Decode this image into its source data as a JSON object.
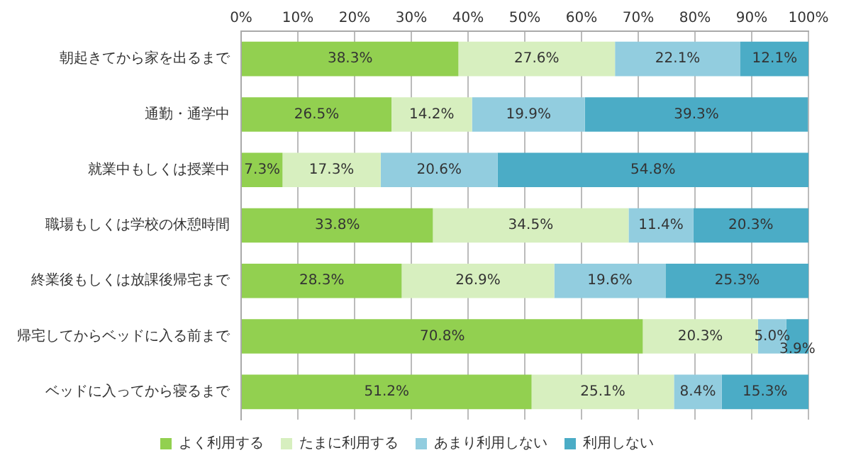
{
  "chart_data": {
    "type": "bar",
    "orientation": "horizontal",
    "stacked": true,
    "categories": [
      "朝起きてから家を出るまで",
      "通勤・通学中",
      "就業中もしくは授業中",
      "職場もしくは学校の休憩時間",
      "終業後もしくは放課後帰宅まで",
      "帰宅してからベッドに入る前まで",
      "ベッドに入ってから寝るまで"
    ],
    "series": [
      {
        "name": "よく利用する",
        "color": "#92d050",
        "values": [
          38.3,
          26.5,
          7.3,
          33.8,
          28.3,
          70.8,
          51.2
        ],
        "value_labels": [
          "38.3%",
          "26.5%",
          "7.3%",
          "33.8%",
          "28.3%",
          "70.8%",
          "51.2%"
        ]
      },
      {
        "name": "たまに利用する",
        "color": "#d7efbf",
        "values": [
          27.6,
          14.2,
          17.3,
          34.5,
          26.9,
          20.3,
          25.1
        ],
        "value_labels": [
          "27.6%",
          "14.2%",
          "17.3%",
          "34.5%",
          "26.9%",
          "20.3%",
          "25.1%"
        ]
      },
      {
        "name": "あまり利用しない",
        "color": "#92cddf",
        "values": [
          22.1,
          19.9,
          20.6,
          11.4,
          19.6,
          5.0,
          8.4
        ],
        "value_labels": [
          "22.1%",
          "19.9%",
          "20.6%",
          "11.4%",
          "19.6%",
          "5.0%",
          "8.4%"
        ]
      },
      {
        "name": "利用しない",
        "color": "#4bacc6",
        "values": [
          12.1,
          39.3,
          54.8,
          20.3,
          25.3,
          3.9,
          15.3
        ],
        "value_labels": [
          "12.1%",
          "39.3%",
          "54.8%",
          "20.3%",
          "25.3%",
          "3.9%",
          "15.3%"
        ]
      }
    ],
    "xlim": [
      0,
      100
    ],
    "xticks": [
      {
        "value": 0,
        "label": "0%"
      },
      {
        "value": 10,
        "label": "10%"
      },
      {
        "value": 20,
        "label": "20%"
      },
      {
        "value": 30,
        "label": "30%"
      },
      {
        "value": 40,
        "label": "40%"
      },
      {
        "value": 50,
        "label": "50%"
      },
      {
        "value": 60,
        "label": "60%"
      },
      {
        "value": 70,
        "label": "70%"
      },
      {
        "value": 80,
        "label": "80%"
      },
      {
        "value": 90,
        "label": "90%"
      },
      {
        "value": 100,
        "label": "100%"
      }
    ],
    "grid": "x",
    "legend": "bottom"
  }
}
